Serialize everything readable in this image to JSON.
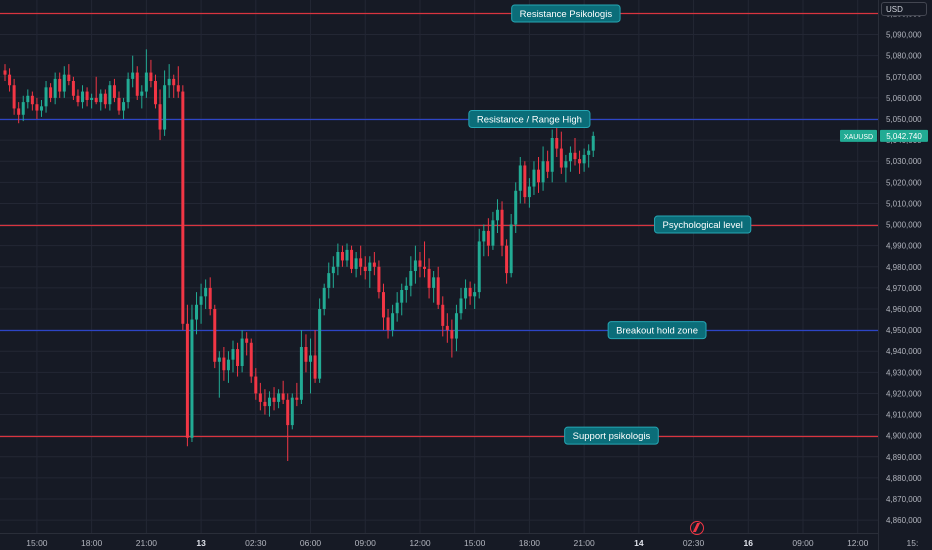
{
  "header": {
    "currency": "USD"
  },
  "symbol": {
    "name": "XAUUSD",
    "price_label": "5,042.740",
    "color": "#22ab94"
  },
  "colors": {
    "background": "#161a25",
    "grid": "#232734",
    "up": "#22ab94",
    "down": "#f23645",
    "red_line": "#d9343f",
    "blue_line": "#2d45c6",
    "annotation_bg": "#0b6d79",
    "annotation_border": "#25a7b4",
    "axis_text": "#b2b5be"
  },
  "chart_data": {
    "type": "candlestick",
    "y_range": [
      4852,
      5104
    ],
    "y_ticks": [
      {
        "value": 5100,
        "label": "5,100,000"
      },
      {
        "value": 5090,
        "label": "5,090,000"
      },
      {
        "value": 5080,
        "label": "5,080,000"
      },
      {
        "value": 5070,
        "label": "5,070,000"
      },
      {
        "value": 5060,
        "label": "5,060,000"
      },
      {
        "value": 5050,
        "label": "5,050,000"
      },
      {
        "value": 5040,
        "label": "5,040,000"
      },
      {
        "value": 5030,
        "label": "5,030,000"
      },
      {
        "value": 5020,
        "label": "5,020,000"
      },
      {
        "value": 5010,
        "label": "5,010,000"
      },
      {
        "value": 5000,
        "label": "5,000,000"
      },
      {
        "value": 4990,
        "label": "4,990,000"
      },
      {
        "value": 4980,
        "label": "4,980,000"
      },
      {
        "value": 4970,
        "label": "4,970,000"
      },
      {
        "value": 4960,
        "label": "4,960,000"
      },
      {
        "value": 4950,
        "label": "4,950,000"
      },
      {
        "value": 4940,
        "label": "4,940,000"
      },
      {
        "value": 4930,
        "label": "4,930,000"
      },
      {
        "value": 4920,
        "label": "4,920,000"
      },
      {
        "value": 4910,
        "label": "4,910,000"
      },
      {
        "value": 4900,
        "label": "4,900,000"
      },
      {
        "value": 4890,
        "label": "4,890,000"
      },
      {
        "value": 4880,
        "label": "4,880,000"
      },
      {
        "value": 4870,
        "label": "4,870,000"
      },
      {
        "value": 4860,
        "label": "4,860,000"
      }
    ],
    "x_ticks": [
      {
        "index": 7,
        "label": "15:00",
        "bold": false
      },
      {
        "index": 19,
        "label": "18:00",
        "bold": false
      },
      {
        "index": 31,
        "label": "21:00",
        "bold": false
      },
      {
        "index": 43,
        "label": "13",
        "bold": true
      },
      {
        "index": 55,
        "label": "02:30",
        "bold": false
      },
      {
        "index": 67,
        "label": "06:00",
        "bold": false
      },
      {
        "index": 79,
        "label": "09:00",
        "bold": false
      },
      {
        "index": 91,
        "label": "12:00",
        "bold": false
      },
      {
        "index": 103,
        "label": "15:00",
        "bold": false
      },
      {
        "index": 115,
        "label": "18:00",
        "bold": false
      },
      {
        "index": 127,
        "label": "21:00",
        "bold": false
      },
      {
        "index": 139,
        "label": "14",
        "bold": true
      },
      {
        "index": 151,
        "label": "02:30",
        "bold": false
      },
      {
        "index": 163,
        "label": "16",
        "bold": true
      },
      {
        "index": 175,
        "label": "09:00",
        "bold": false
      },
      {
        "index": 187,
        "label": "12:00",
        "bold": false
      },
      {
        "index": 199,
        "label": "15:",
        "bold": false
      }
    ],
    "levels": [
      {
        "value": 5100,
        "color": "red",
        "label": "Resistance Psikologis",
        "label_index": 123
      },
      {
        "value": 5050,
        "color": "blue",
        "label": "Resistance / Range High",
        "label_index": 115
      },
      {
        "value": 5000,
        "color": "red",
        "label": "Psychological level",
        "label_index": 153
      },
      {
        "value": 4950,
        "color": "blue",
        "label": "Breakout hold zone",
        "label_index": 143
      },
      {
        "value": 4900,
        "color": "red",
        "label": "Support psikologis",
        "label_index": 133
      }
    ],
    "candles": [
      [
        5073,
        5076,
        5068,
        5071
      ],
      [
        5071,
        5074,
        5063,
        5066
      ],
      [
        5066,
        5069,
        5052,
        5055
      ],
      [
        5055,
        5058,
        5048,
        5052
      ],
      [
        5052,
        5061,
        5049,
        5058
      ],
      [
        5058,
        5064,
        5055,
        5061
      ],
      [
        5061,
        5063,
        5054,
        5057
      ],
      [
        5057,
        5060,
        5050,
        5054
      ],
      [
        5054,
        5059,
        5051,
        5056
      ],
      [
        5056,
        5068,
        5053,
        5065
      ],
      [
        5065,
        5067,
        5058,
        5060
      ],
      [
        5060,
        5072,
        5057,
        5069
      ],
      [
        5069,
        5072,
        5060,
        5063
      ],
      [
        5063,
        5075,
        5060,
        5071
      ],
      [
        5071,
        5076,
        5066,
        5068
      ],
      [
        5068,
        5070,
        5059,
        5061
      ],
      [
        5061,
        5064,
        5056,
        5058
      ],
      [
        5058,
        5066,
        5055,
        5063
      ],
      [
        5063,
        5065,
        5056,
        5059
      ],
      [
        5059,
        5062,
        5055,
        5060
      ],
      [
        5060,
        5070,
        5057,
        5058
      ],
      [
        5058,
        5064,
        5054,
        5062
      ],
      [
        5062,
        5064,
        5055,
        5057
      ],
      [
        5057,
        5068,
        5054,
        5066
      ],
      [
        5066,
        5069,
        5058,
        5060
      ],
      [
        5060,
        5063,
        5052,
        5054
      ],
      [
        5054,
        5060,
        5050,
        5058
      ],
      [
        5058,
        5072,
        5055,
        5069
      ],
      [
        5069,
        5080,
        5065,
        5072
      ],
      [
        5072,
        5075,
        5059,
        5061
      ],
      [
        5061,
        5066,
        5055,
        5063
      ],
      [
        5063,
        5083,
        5060,
        5072
      ],
      [
        5072,
        5078,
        5065,
        5068
      ],
      [
        5068,
        5071,
        5055,
        5057
      ],
      [
        5057,
        5064,
        5040,
        5045
      ],
      [
        5045,
        5073,
        5042,
        5066
      ],
      [
        5066,
        5076,
        5060,
        5069
      ],
      [
        5069,
        5071,
        5060,
        5066
      ],
      [
        5066,
        5075,
        5060,
        5063
      ],
      [
        5063,
        5066,
        4950,
        4953
      ],
      [
        4953,
        4962,
        4895,
        4899
      ],
      [
        4899,
        4962,
        4897,
        4955
      ],
      [
        4955,
        4968,
        4948,
        4962
      ],
      [
        4962,
        4972,
        4953,
        4966
      ],
      [
        4966,
        4974,
        4960,
        4970
      ],
      [
        4970,
        4975,
        4957,
        4960
      ],
      [
        4960,
        4962,
        4932,
        4935
      ],
      [
        4935,
        4940,
        4918,
        4937
      ],
      [
        4937,
        4942,
        4926,
        4931
      ],
      [
        4931,
        4940,
        4925,
        4936
      ],
      [
        4936,
        4945,
        4930,
        4941
      ],
      [
        4941,
        4944,
        4928,
        4933
      ],
      [
        4933,
        4950,
        4930,
        4946
      ],
      [
        4946,
        4949,
        4938,
        4944
      ],
      [
        4944,
        4946,
        4925,
        4928
      ],
      [
        4928,
        4932,
        4917,
        4920
      ],
      [
        4920,
        4925,
        4912,
        4916
      ],
      [
        4916,
        4922,
        4910,
        4914
      ],
      [
        4914,
        4921,
        4909,
        4918
      ],
      [
        4918,
        4923,
        4912,
        4916
      ],
      [
        4916,
        4922,
        4913,
        4920
      ],
      [
        4920,
        4926,
        4915,
        4917
      ],
      [
        4917,
        4920,
        4888,
        4905
      ],
      [
        4905,
        4920,
        4903,
        4918
      ],
      [
        4918,
        4925,
        4914,
        4917
      ],
      [
        4917,
        4950,
        4915,
        4942
      ],
      [
        4942,
        4948,
        4930,
        4935
      ],
      [
        4935,
        4946,
        4920,
        4938
      ],
      [
        4938,
        4950,
        4925,
        4927
      ],
      [
        4927,
        4965,
        4925,
        4960
      ],
      [
        4960,
        4972,
        4957,
        4970
      ],
      [
        4970,
        4982,
        4965,
        4977
      ],
      [
        4977,
        4985,
        4970,
        4980
      ],
      [
        4980,
        4991,
        4976,
        4987
      ],
      [
        4987,
        4990,
        4980,
        4983
      ],
      [
        4983,
        4991,
        4980,
        4988
      ],
      [
        4988,
        4990,
        4977,
        4979
      ],
      [
        4979,
        4987,
        4975,
        4984
      ],
      [
        4984,
        4990,
        4976,
        4980
      ],
      [
        4980,
        4985,
        4974,
        4978
      ],
      [
        4978,
        4985,
        4970,
        4982
      ],
      [
        4982,
        4987,
        4976,
        4980
      ],
      [
        4980,
        4983,
        4965,
        4968
      ],
      [
        4968,
        4972,
        4950,
        4956
      ],
      [
        4956,
        4960,
        4946,
        4950
      ],
      [
        4950,
        4962,
        4947,
        4958
      ],
      [
        4958,
        4968,
        4954,
        4963
      ],
      [
        4963,
        4972,
        4957,
        4969
      ],
      [
        4969,
        4975,
        4963,
        4971
      ],
      [
        4971,
        4985,
        4966,
        4978
      ],
      [
        4978,
        4990,
        4972,
        4983
      ],
      [
        4983,
        4987,
        4975,
        4980
      ],
      [
        4980,
        4992,
        4975,
        4979
      ],
      [
        4979,
        4984,
        4965,
        4970
      ],
      [
        4970,
        4978,
        4963,
        4975
      ],
      [
        4975,
        4980,
        4960,
        4962
      ],
      [
        4962,
        4966,
        4947,
        4952
      ],
      [
        4952,
        4958,
        4944,
        4950
      ],
      [
        4950,
        4955,
        4937,
        4946
      ],
      [
        4946,
        4962,
        4940,
        4958
      ],
      [
        4958,
        4970,
        4955,
        4965
      ],
      [
        4965,
        4974,
        4960,
        4970
      ],
      [
        4970,
        4973,
        4962,
        4966
      ],
      [
        4966,
        4972,
        4960,
        4968
      ],
      [
        4968,
        4998,
        4965,
        4992
      ],
      [
        4992,
        5000,
        4985,
        4997
      ],
      [
        4997,
        5003,
        4985,
        4990
      ],
      [
        4990,
        5006,
        4988,
        5002
      ],
      [
        5002,
        5012,
        4996,
        5007
      ],
      [
        5007,
        5011,
        4985,
        4990
      ],
      [
        4990,
        4993,
        4972,
        4977
      ],
      [
        4977,
        5005,
        4975,
        5000
      ],
      [
        5000,
        5020,
        4996,
        5016
      ],
      [
        5016,
        5032,
        5010,
        5028
      ],
      [
        5028,
        5030,
        5010,
        5013
      ],
      [
        5013,
        5022,
        5008,
        5018
      ],
      [
        5018,
        5030,
        5014,
        5026
      ],
      [
        5026,
        5032,
        5015,
        5020
      ],
      [
        5020,
        5037,
        5016,
        5030
      ],
      [
        5030,
        5035,
        5022,
        5025
      ],
      [
        5025,
        5045,
        5020,
        5041
      ],
      [
        5041,
        5046,
        5032,
        5036
      ],
      [
        5036,
        5044,
        5024,
        5027
      ],
      [
        5027,
        5033,
        5020,
        5030
      ],
      [
        5030,
        5037,
        5025,
        5034
      ],
      [
        5034,
        5041,
        5028,
        5031
      ],
      [
        5031,
        5035,
        5024,
        5029
      ],
      [
        5029,
        5036,
        5025,
        5033
      ],
      [
        5033,
        5038,
        5027,
        5035
      ],
      [
        5035,
        5044,
        5032,
        5042
      ]
    ]
  }
}
